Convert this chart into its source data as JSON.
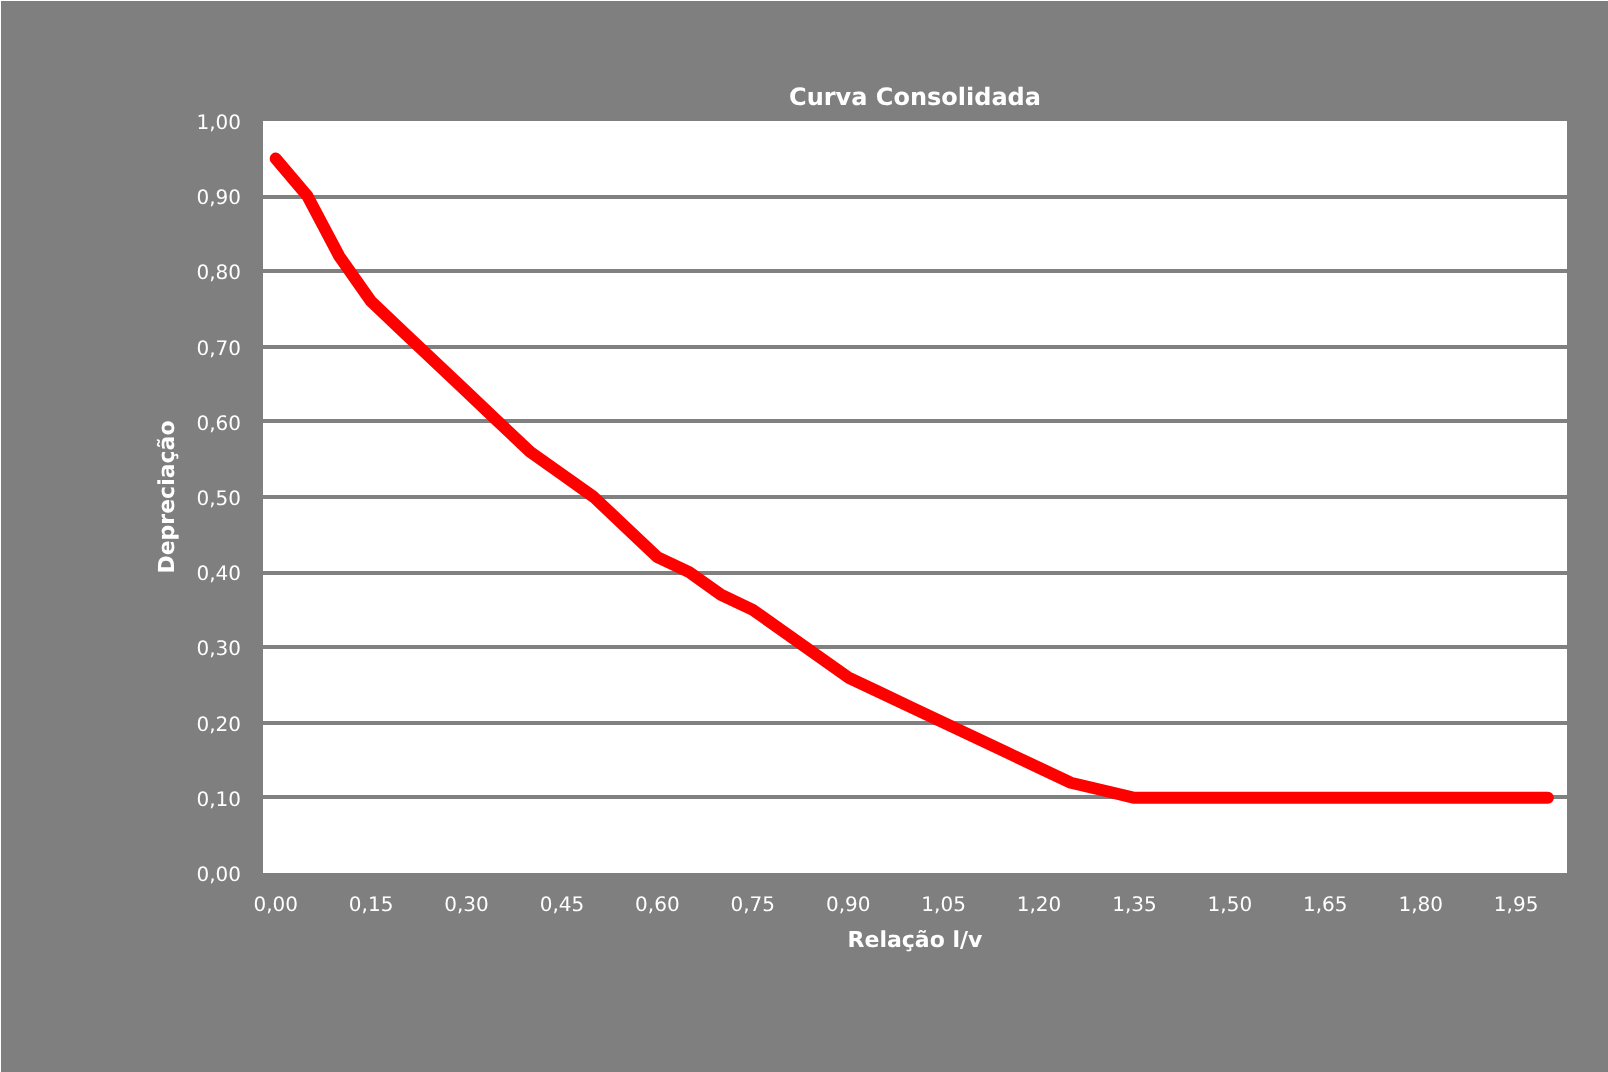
{
  "chart_data": {
    "type": "line",
    "title": "Curva Consolidada",
    "xlabel": "Relação l/v",
    "ylabel": "Depreciação",
    "x": [
      0.0,
      0.05,
      0.1,
      0.15,
      0.2,
      0.25,
      0.3,
      0.35,
      0.4,
      0.45,
      0.5,
      0.55,
      0.6,
      0.65,
      0.7,
      0.75,
      0.8,
      0.85,
      0.9,
      0.95,
      1.0,
      1.05,
      1.1,
      1.15,
      1.2,
      1.25,
      1.3,
      1.35,
      1.4,
      1.45,
      1.5,
      1.55,
      1.6,
      1.65,
      1.7,
      1.75,
      1.8,
      1.85,
      1.9,
      1.95,
      2.0
    ],
    "series": [
      {
        "color": "#ff0000",
        "values": [
          0.95,
          0.9,
          0.82,
          0.76,
          0.72,
          0.68,
          0.64,
          0.6,
          0.56,
          0.53,
          0.5,
          0.46,
          0.42,
          0.4,
          0.37,
          0.35,
          0.32,
          0.29,
          0.26,
          0.24,
          0.22,
          0.2,
          0.18,
          0.16,
          0.14,
          0.12,
          0.11,
          0.1,
          0.1,
          0.1,
          0.1,
          0.1,
          0.1,
          0.1,
          0.1,
          0.1,
          0.1,
          0.1,
          0.1,
          0.1,
          0.1
        ]
      }
    ],
    "xlim": [
      -0.02,
      2.03
    ],
    "ylim": [
      0,
      1
    ],
    "xticks": [
      {
        "value": 0,
        "label": "0,00"
      },
      {
        "value": 0.15,
        "label": "0,15"
      },
      {
        "value": 0.3,
        "label": "0,30"
      },
      {
        "value": 0.45,
        "label": "0,45"
      },
      {
        "value": 0.6,
        "label": "0,60"
      },
      {
        "value": 0.75,
        "label": "0,75"
      },
      {
        "value": 0.9,
        "label": "0,90"
      },
      {
        "value": 1.05,
        "label": "1,05"
      },
      {
        "value": 1.2,
        "label": "1,20"
      },
      {
        "value": 1.35,
        "label": "1,35"
      },
      {
        "value": 1.5,
        "label": "1,50"
      },
      {
        "value": 1.65,
        "label": "1,65"
      },
      {
        "value": 1.8,
        "label": "1,80"
      },
      {
        "value": 1.95,
        "label": "1,95"
      }
    ],
    "yticks": [
      {
        "value": 0,
        "label": "0,00"
      },
      {
        "value": 0.1,
        "label": "0,10"
      },
      {
        "value": 0.2,
        "label": "0,20"
      },
      {
        "value": 0.3,
        "label": "0,30"
      },
      {
        "value": 0.4,
        "label": "0,40"
      },
      {
        "value": 0.5,
        "label": "0,50"
      },
      {
        "value": 0.6,
        "label": "0,60"
      },
      {
        "value": 0.7,
        "label": "0,70"
      },
      {
        "value": 0.8,
        "label": "0,80"
      },
      {
        "value": 0.9,
        "label": "0,90"
      },
      {
        "value": 1.0,
        "label": "1,00"
      }
    ],
    "grid": "y",
    "marker": "none",
    "line_style": "solid"
  }
}
